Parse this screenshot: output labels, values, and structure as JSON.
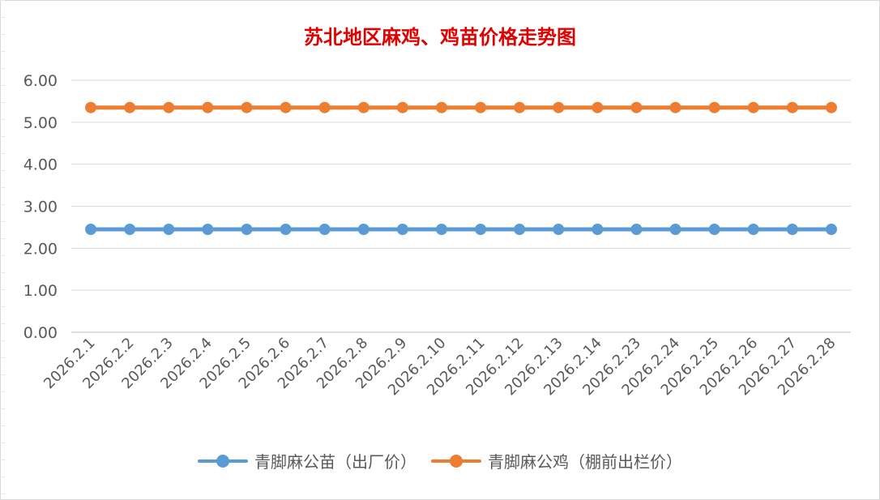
{
  "chart_data": {
    "type": "line",
    "title": "苏北地区麻鸡、鸡苗价格走势图",
    "xlabel": "",
    "ylabel": "",
    "categories": [
      "2026.2.1",
      "2026.2.2",
      "2026.2.3",
      "2026.2.4",
      "2026.2.5",
      "2026.2.6",
      "2026.2.7",
      "2026.2.8",
      "2026.2.9",
      "2026.2.10",
      "2026.2.11",
      "2026.2.12",
      "2026.2.13",
      "2026.2.14",
      "2026.2.23",
      "2026.2.24",
      "2026.2.25",
      "2026.2.26",
      "2026.2.27",
      "2026.2.28"
    ],
    "y_ticks": [
      "0.00",
      "1.00",
      "2.00",
      "3.00",
      "4.00",
      "5.00",
      "6.00"
    ],
    "ylim": [
      0,
      6
    ],
    "grid": true,
    "legend_position": "bottom",
    "series": [
      {
        "name": "青脚麻公苗（出厂价）",
        "color": "#5b9bd5",
        "values": [
          2.45,
          2.45,
          2.45,
          2.45,
          2.45,
          2.45,
          2.45,
          2.45,
          2.45,
          2.45,
          2.45,
          2.45,
          2.45,
          2.45,
          2.45,
          2.45,
          2.45,
          2.45,
          2.45,
          2.45
        ]
      },
      {
        "name": "青脚麻公鸡（棚前出栏价）",
        "color": "#ed7d31",
        "values": [
          5.35,
          5.35,
          5.35,
          5.35,
          5.35,
          5.35,
          5.35,
          5.35,
          5.35,
          5.35,
          5.35,
          5.35,
          5.35,
          5.35,
          5.35,
          5.35,
          5.35,
          5.35,
          5.35,
          5.35
        ]
      }
    ]
  }
}
